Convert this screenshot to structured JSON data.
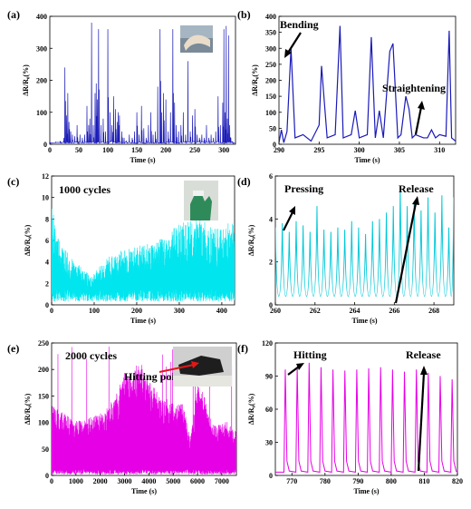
{
  "chart_data": [
    {
      "panel": "(a)",
      "type": "line",
      "color": "#1a1ab8",
      "xlabel": "Time (s)",
      "ylabel": "ΔR/R₀(%)",
      "xlim": [
        0,
        320
      ],
      "ylim": [
        0,
        400
      ],
      "xticks": [
        0,
        50,
        100,
        150,
        200,
        250,
        300
      ],
      "yticks": [
        0,
        100,
        200,
        300,
        400
      ],
      "annotations": [],
      "inset": "photo",
      "series": [
        {
          "x": [
            0,
            10,
            18,
            24,
            26,
            27,
            29,
            31,
            33,
            36,
            39,
            43,
            47,
            52,
            56,
            60,
            64,
            67,
            69,
            72,
            75,
            78,
            80,
            82,
            84,
            88,
            92,
            96,
            100,
            104,
            107,
            110,
            113,
            116,
            118,
            120,
            124,
            128,
            132,
            137,
            142,
            146,
            150,
            154,
            158,
            162,
            166,
            170,
            174,
            178,
            182,
            186,
            190,
            193,
            196,
            200,
            204,
            208,
            212,
            215,
            218,
            222,
            226,
            230,
            234,
            238,
            242,
            246,
            250,
            254,
            258,
            262,
            266,
            270,
            274,
            278,
            282,
            286,
            290,
            294,
            298,
            300,
            302,
            304,
            306,
            308,
            310,
            312,
            315
          ],
          "y": [
            5,
            8,
            10,
            20,
            240,
            120,
            90,
            160,
            70,
            40,
            30,
            25,
            60,
            30,
            20,
            30,
            120,
            60,
            80,
            380,
            60,
            160,
            190,
            140,
            360,
            60,
            80,
            40,
            360,
            100,
            60,
            150,
            110,
            70,
            100,
            90,
            40,
            20,
            10,
            30,
            20,
            40,
            100,
            30,
            120,
            50,
            20,
            60,
            100,
            30,
            40,
            180,
            360,
            100,
            160,
            140,
            40,
            100,
            360,
            130,
            60,
            40,
            60,
            100,
            30,
            260,
            40,
            90,
            110,
            30,
            20,
            30,
            20,
            60,
            20,
            30,
            20,
            40,
            150,
            60,
            130,
            360,
            100,
            370,
            80,
            340,
            60,
            20,
            5
          ]
        }
      ]
    },
    {
      "panel": "(b)",
      "type": "line",
      "color": "#1a1ab8",
      "xlabel": "Time (s)",
      "ylabel": "ΔR/R₀(%)",
      "xlim": [
        290,
        312
      ],
      "ylim": [
        0,
        400
      ],
      "xticks": [
        290,
        295,
        300,
        305,
        310
      ],
      "yticks": [
        0,
        50,
        100,
        150,
        200,
        250,
        300,
        350,
        400
      ],
      "annotations": [
        "Bending",
        "Straightening"
      ],
      "series": [
        {
          "x": [
            290.0,
            290.3,
            290.6,
            291.0,
            291.5,
            292.0,
            293.0,
            294.0,
            295.0,
            295.3,
            296.0,
            297.0,
            297.6,
            298.0,
            299.0,
            299.5,
            300.0,
            301.0,
            301.5,
            302.0,
            302.5,
            303.0,
            303.8,
            304.2,
            304.8,
            305.2,
            305.8,
            306.2,
            306.6,
            307.0,
            308.0,
            308.5,
            309.0,
            309.5,
            310.0,
            310.8,
            311.2,
            311.5,
            312.0
          ],
          "y": [
            5,
            45,
            5,
            40,
            300,
            20,
            30,
            10,
            60,
            245,
            20,
            30,
            370,
            20,
            30,
            105,
            20,
            30,
            335,
            20,
            105,
            20,
            290,
            315,
            20,
            30,
            150,
            110,
            20,
            30,
            20,
            20,
            45,
            20,
            30,
            25,
            355,
            20,
            10
          ]
        }
      ]
    },
    {
      "panel": "(c)",
      "type": "line",
      "color": "#00e5ee",
      "xlabel": "Time (s)",
      "ylabel": "ΔR/R₀(%)",
      "xlim": [
        0,
        430
      ],
      "ylim": [
        0,
        12
      ],
      "xticks": [
        0,
        100,
        200,
        300,
        400
      ],
      "yticks": [
        0,
        2,
        4,
        6,
        8,
        10,
        12
      ],
      "annotations": [
        "1000 cycles"
      ],
      "inset": "photo",
      "series": [
        {
          "x": [
            0,
            15,
            30,
            45,
            60,
            75,
            90,
            105,
            120,
            135,
            150,
            165,
            180,
            195,
            210,
            225,
            240,
            255,
            270,
            285,
            300,
            315,
            330,
            345,
            360,
            375,
            390,
            405,
            420,
            430
          ],
          "y": [
            7,
            5,
            4,
            3.5,
            3,
            2.5,
            2.2,
            2.5,
            3,
            3.5,
            3.5,
            4,
            4,
            4.2,
            4.3,
            4.5,
            4.5,
            4.8,
            5,
            5.5,
            5.8,
            6,
            6,
            6.2,
            6,
            5.8,
            5.5,
            5.8,
            6,
            6
          ]
        }
      ]
    },
    {
      "panel": "(d)",
      "type": "line",
      "color": "#00c8d8",
      "xlabel": "Time (s)",
      "ylabel": "ΔR/R₀(%)",
      "xlim": [
        260,
        269
      ],
      "ylim": [
        0,
        6
      ],
      "xticks": [
        260,
        262,
        264,
        266,
        268
      ],
      "yticks": [
        0,
        2,
        4,
        6
      ],
      "annotations": [
        "Pressing",
        "Release"
      ],
      "series": [
        {
          "peak_times": [
            260.0,
            260.35,
            260.7,
            261.05,
            261.4,
            261.75,
            262.1,
            262.45,
            262.8,
            263.15,
            263.5,
            263.85,
            264.2,
            264.55,
            264.9,
            265.25,
            265.6,
            265.95,
            266.3,
            266.65,
            267.0,
            267.35,
            267.7,
            268.05,
            268.4,
            268.75,
            269.0
          ],
          "peaks": [
            3.6,
            3.8,
            3.4,
            3.9,
            3.7,
            3.4,
            4.6,
            3.5,
            3.4,
            3.6,
            3.5,
            3.9,
            3.6,
            3.3,
            3.9,
            4.0,
            4.3,
            4.6,
            5.5,
            4.6,
            4.8,
            4.4,
            5.0,
            4.3,
            5.1,
            3.6,
            5.0
          ],
          "trough": 0.4
        }
      ]
    },
    {
      "panel": "(e)",
      "type": "line",
      "color": "#e600e6",
      "xlabel": "Time (s)",
      "ylabel": "ΔR/R₀(%)",
      "xlim": [
        0,
        7600
      ],
      "ylim": [
        0,
        250
      ],
      "xticks": [
        0,
        1000,
        2000,
        3000,
        4000,
        5000,
        6000,
        7000
      ],
      "yticks": [
        0,
        50,
        100,
        150,
        200,
        250
      ],
      "annotations": [
        "2000 cycles",
        "Hitting point"
      ],
      "inset": "photo",
      "series": [
        {
          "x": [
            0,
            300,
            600,
            900,
            1200,
            1500,
            1800,
            2100,
            2400,
            2700,
            3000,
            3300,
            3600,
            3900,
            4200,
            4500,
            4800,
            5100,
            5400,
            5700,
            6000,
            6300,
            6600,
            6900,
            7200,
            7500
          ],
          "y": [
            110,
            105,
            95,
            90,
            85,
            90,
            95,
            100,
            115,
            130,
            165,
            170,
            175,
            160,
            140,
            120,
            120,
            110,
            115,
            60,
            140,
            130,
            80,
            80,
            85,
            70
          ]
        }
      ]
    },
    {
      "panel": "(f)",
      "type": "line",
      "color": "#e600e6",
      "xlabel": "Time (s)",
      "ylabel": "ΔR/R₀(%)",
      "xlim": [
        765,
        820
      ],
      "ylim": [
        0,
        120
      ],
      "xticks": [
        770,
        780,
        790,
        800,
        810,
        820
      ],
      "yticks": [
        0,
        30,
        60,
        90,
        120
      ],
      "annotations": [
        "Hitting",
        "Release"
      ],
      "series": [
        {
          "peak_times": [
            768,
            771.6,
            775.2,
            778.8,
            782.4,
            786,
            789.6,
            793.2,
            796.8,
            800.4,
            804,
            807.6,
            811.2,
            814.8,
            818.4
          ],
          "peaks": [
            96,
            98,
            102,
            98,
            96,
            95,
            96,
            97,
            98,
            96,
            94,
            96,
            93,
            90,
            87
          ],
          "baseline": 3
        }
      ]
    }
  ]
}
